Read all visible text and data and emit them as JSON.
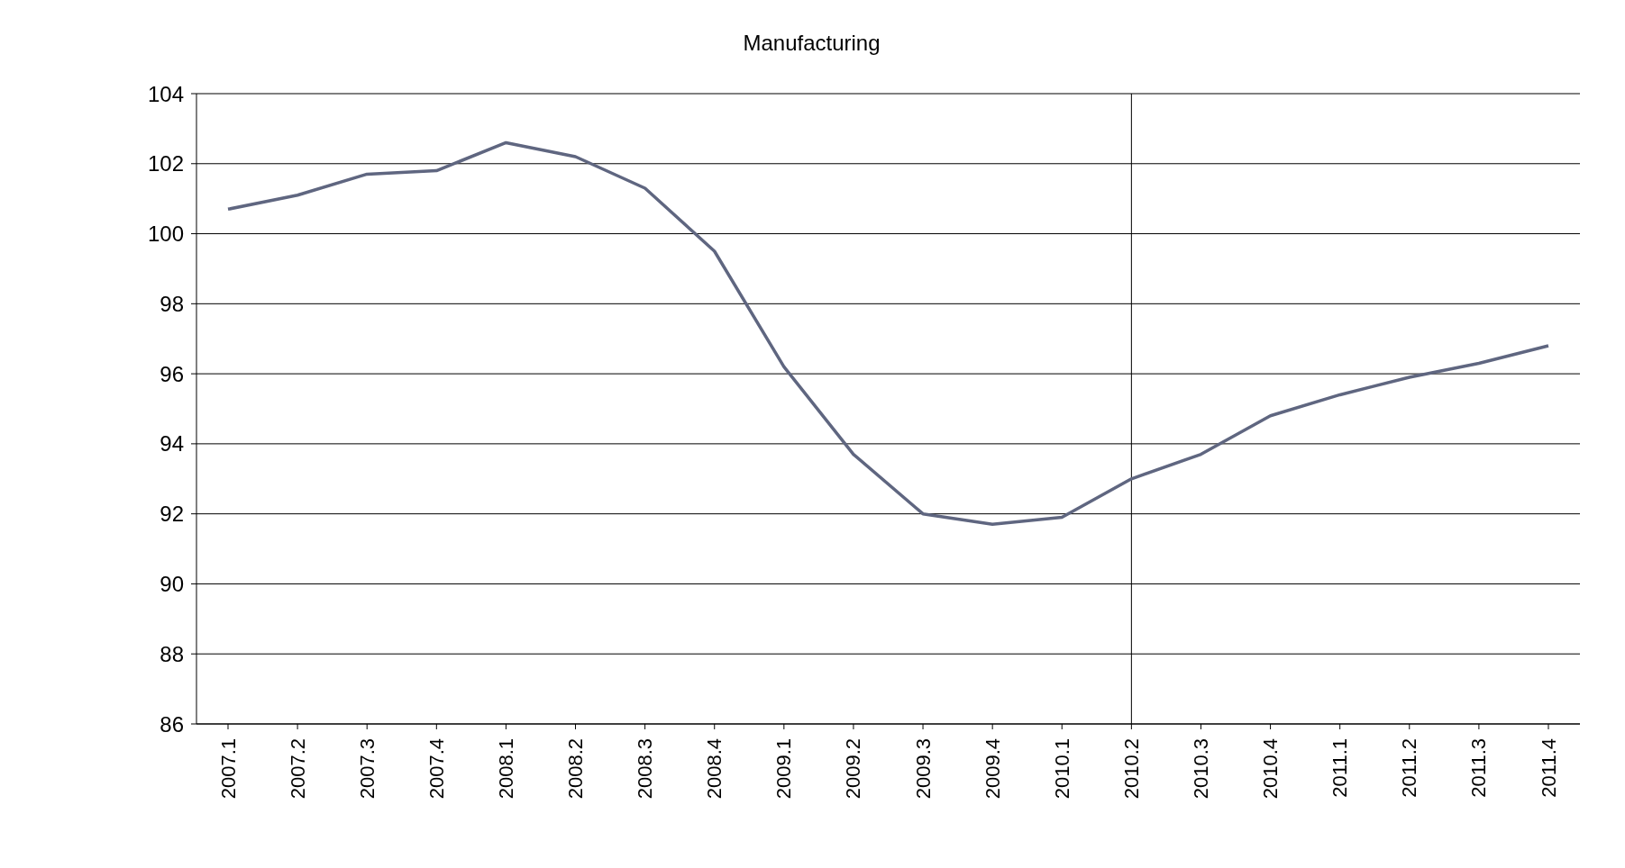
{
  "chart_data": {
    "type": "line",
    "title": "Manufacturing",
    "categories": [
      "2007.1",
      "2007.2",
      "2007.3",
      "2007.4",
      "2008.1",
      "2008.2",
      "2008.3",
      "2008.4",
      "2009.1",
      "2009.2",
      "2009.3",
      "2009.4",
      "2010.1",
      "2010.2",
      "2010.3",
      "2010.4",
      "2011.1",
      "2011.2",
      "2011.3",
      "2011.4"
    ],
    "series": [
      {
        "color": "#5f6680",
        "values": [
          100.7,
          101.1,
          101.7,
          101.8,
          102.6,
          102.2,
          101.3,
          99.5,
          96.2,
          93.7,
          92.0,
          91.7,
          91.9,
          93.0,
          93.7,
          94.8,
          95.4,
          95.9,
          96.3,
          96.8
        ]
      }
    ],
    "ylim": [
      86,
      104
    ],
    "yticks": [
      86,
      88,
      90,
      92,
      94,
      96,
      98,
      100,
      102,
      104
    ],
    "grid": "y",
    "marker": "none",
    "line_style": "solid",
    "ref_lines": [
      {
        "axis": "x",
        "value": "2010.2",
        "color": "#000000"
      }
    ]
  }
}
